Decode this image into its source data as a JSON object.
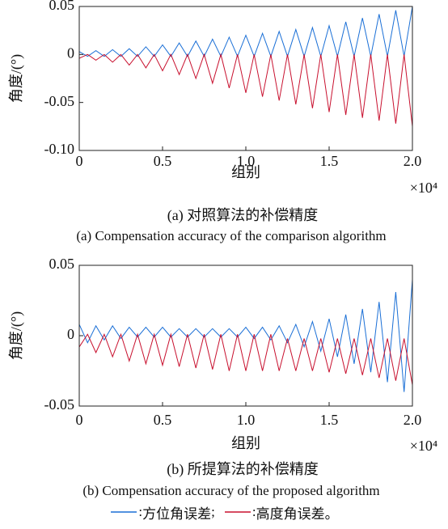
{
  "chart_data": [
    {
      "type": "line",
      "title": "(a) 对照算法的补偿精度",
      "subtitle": "(a) Compensation accuracy of the comparison algorithm",
      "x_label": "组别",
      "y_label": "角度/(°)",
      "x_multiplier": "×10⁴",
      "xlim": [
        0,
        2
      ],
      "ylim": [
        -0.1,
        0.05
      ],
      "xticks": [
        0,
        0.5,
        {
          "value": 1,
          "label": "1.0"
        },
        1.5,
        {
          "value": 2,
          "label": "2.0"
        }
      ],
      "yticks": [
        0.05,
        0,
        {
          "value": -0.05,
          "label": "-0.05"
        },
        {
          "value": -0.1,
          "label": "-0.10"
        }
      ],
      "grid": false,
      "x": [
        0,
        0.05,
        0.1,
        0.15,
        0.2,
        0.25,
        0.3,
        0.35,
        0.4,
        0.45,
        0.5,
        0.55,
        0.6,
        0.65,
        0.7,
        0.75,
        0.8,
        0.85,
        0.9,
        0.95,
        1,
        1.05,
        1.1,
        1.15,
        1.2,
        1.25,
        1.3,
        1.35,
        1.4,
        1.45,
        1.5,
        1.55,
        1.6,
        1.65,
        1.7,
        1.75,
        1.8,
        1.85,
        1.9,
        1.95,
        2
      ],
      "series": [
        {
          "name": "方位角误差",
          "color": "#1a6fd6",
          "values": [
            0.003,
            -0.002,
            0.004,
            -0.002,
            0.005,
            -0.002,
            0.006,
            -0.002,
            0.008,
            -0.002,
            0.01,
            -0.002,
            0.012,
            -0.002,
            0.014,
            -0.002,
            0.016,
            -0.002,
            0.018,
            -0.002,
            0.02,
            -0.002,
            0.022,
            -0.002,
            0.024,
            -0.002,
            0.026,
            -0.002,
            0.028,
            -0.002,
            0.03,
            -0.002,
            0.034,
            -0.002,
            0.038,
            -0.002,
            0.042,
            -0.002,
            0.046,
            -0.002,
            0.05
          ]
        },
        {
          "name": "高度角误差",
          "color": "#c8102e",
          "values": [
            -0.004,
            0,
            -0.006,
            0,
            -0.008,
            0,
            -0.011,
            0,
            -0.014,
            0,
            -0.017,
            0,
            -0.021,
            0,
            -0.025,
            0,
            -0.03,
            0,
            -0.035,
            0,
            -0.04,
            0,
            -0.044,
            0,
            -0.048,
            0,
            -0.052,
            0,
            -0.056,
            0,
            -0.06,
            0,
            -0.063,
            0,
            -0.066,
            0,
            -0.069,
            0,
            -0.072,
            0,
            -0.075
          ]
        }
      ]
    },
    {
      "type": "line",
      "title": "(b) 所提算法的补偿精度",
      "subtitle": "(b) Compensation accuracy of the proposed algorithm",
      "x_label": "组别",
      "y_label": "角度/(°)",
      "x_multiplier": "×10⁴",
      "xlim": [
        0,
        2
      ],
      "ylim": [
        -0.05,
        0.05
      ],
      "xticks": [
        0,
        0.5,
        {
          "value": 1,
          "label": "1.0"
        },
        1.5,
        {
          "value": 2,
          "label": "2.0"
        }
      ],
      "yticks": [
        0.05,
        0,
        {
          "value": -0.05,
          "label": "-0.05"
        }
      ],
      "grid": false,
      "x": [
        0,
        0.05,
        0.1,
        0.15,
        0.2,
        0.25,
        0.3,
        0.35,
        0.4,
        0.45,
        0.5,
        0.55,
        0.6,
        0.65,
        0.7,
        0.75,
        0.8,
        0.85,
        0.9,
        0.95,
        1,
        1.05,
        1.1,
        1.15,
        1.2,
        1.25,
        1.3,
        1.35,
        1.4,
        1.45,
        1.5,
        1.55,
        1.6,
        1.65,
        1.7,
        1.75,
        1.8,
        1.85,
        1.9,
        1.95,
        2
      ],
      "series": [
        {
          "name": "方位角误差",
          "color": "#1a6fd6",
          "values": [
            0.008,
            -0.005,
            0.007,
            -0.003,
            0.007,
            -0.002,
            0.006,
            -0.001,
            0.006,
            -0.001,
            0.006,
            -0.001,
            0.005,
            -0.001,
            0.005,
            -0.001,
            0.005,
            -0.001,
            0.005,
            -0.001,
            0.006,
            -0.002,
            0.006,
            -0.003,
            0.007,
            -0.005,
            0.008,
            -0.008,
            0.01,
            -0.011,
            0.012,
            -0.015,
            0.015,
            -0.02,
            0.019,
            -0.026,
            0.024,
            -0.033,
            0.031,
            -0.04,
            0.04
          ]
        },
        {
          "name": "高度角误差",
          "color": "#c8102e",
          "values": [
            -0.008,
            0.001,
            -0.012,
            0.001,
            -0.015,
            0.001,
            -0.018,
            0.001,
            -0.02,
            0.001,
            -0.021,
            0.001,
            -0.022,
            0.001,
            -0.023,
            0.001,
            -0.024,
            0.001,
            -0.025,
            0.001,
            -0.025,
            0.001,
            -0.025,
            0.001,
            -0.025,
            -0.002,
            -0.025,
            -0.002,
            -0.025,
            -0.002,
            -0.026,
            -0.002,
            -0.027,
            -0.002,
            -0.028,
            -0.002,
            -0.03,
            -0.002,
            -0.032,
            -0.002,
            -0.035
          ]
        }
      ]
    }
  ],
  "legend": {
    "colon": ":",
    "separator": ";",
    "end": "。"
  }
}
